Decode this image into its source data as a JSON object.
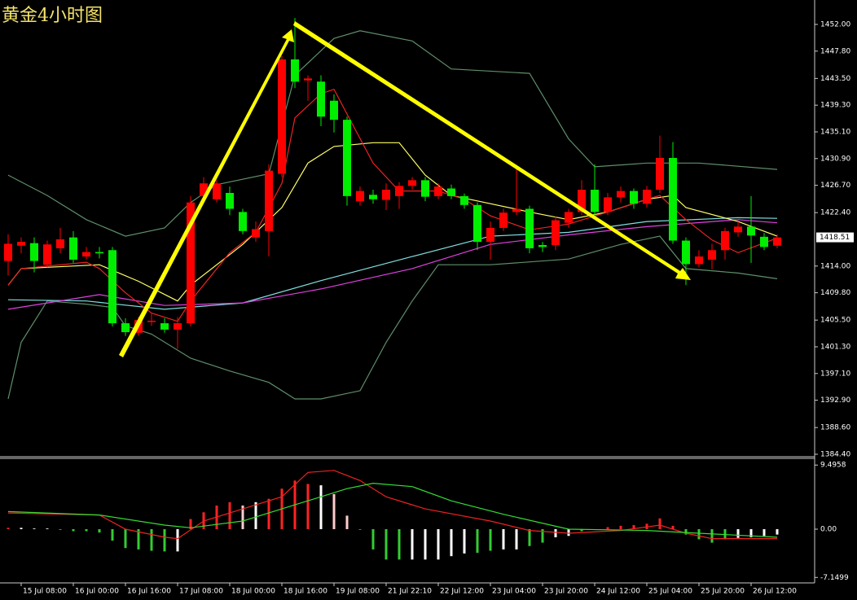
{
  "chart_data": [
    {
      "type": "candlestick",
      "title": "黄金4小时图",
      "up_color": "#ff0000",
      "down_color": "#00ee00",
      "xlim": [
        -0.625,
        61.875
      ],
      "xticks": [
        {
          "value": 1,
          "label": "15 Jul 08:00"
        },
        {
          "value": 5,
          "label": "16 Jul 00:00"
        },
        {
          "value": 9,
          "label": "16 Jul 16:00"
        },
        {
          "value": 13,
          "label": "17 Jul 08:00"
        },
        {
          "value": 17,
          "label": "18 Jul 00:00"
        },
        {
          "value": 21,
          "label": "18 Jul 16:00"
        },
        {
          "value": 25,
          "label": "19 Jul 08:00"
        },
        {
          "value": 29,
          "label": "21 Jul 22:10"
        },
        {
          "value": 33,
          "label": "22 Jul 12:00"
        },
        {
          "value": 37,
          "label": "23 Jul 04:00"
        },
        {
          "value": 41,
          "label": "23 Jul 20:00"
        },
        {
          "value": 45,
          "label": "24 Jul 12:00"
        },
        {
          "value": 49,
          "label": "25 Jul 04:00"
        },
        {
          "value": 53,
          "label": "25 Jul 20:00"
        },
        {
          "value": 57,
          "label": "26 Jul 12:00"
        }
      ],
      "ylim": [
        1384.14,
        1455.84
      ],
      "yticks": [
        {
          "value": 1452,
          "label": "1452.00"
        },
        {
          "value": 1447.8,
          "label": "1447.80"
        },
        {
          "value": 1443.5,
          "label": "1443.50"
        },
        {
          "value": 1439.3,
          "label": "1439.30"
        },
        {
          "value": 1435.1,
          "label": "1435.10"
        },
        {
          "value": 1430.9,
          "label": "1430.90"
        },
        {
          "value": 1426.7,
          "label": "1426.70"
        },
        {
          "value": 1422.4,
          "label": "1422.40"
        },
        {
          "value": 1414,
          "label": "1414.00"
        },
        {
          "value": 1409.8,
          "label": "1409.80"
        },
        {
          "value": 1405.5,
          "label": "1405.50"
        },
        {
          "value": 1401.3,
          "label": "1401.30"
        },
        {
          "value": 1397.1,
          "label": "1397.10"
        },
        {
          "value": 1392.9,
          "label": "1392.90"
        },
        {
          "value": 1388.6,
          "label": "1388.60"
        },
        {
          "value": 1384.4,
          "label": "1384.40"
        }
      ],
      "last_price": 1418.51,
      "open": [
        1414.8,
        1417.2,
        1417.6,
        1414.2,
        1416.8,
        1418.5,
        1415.5,
        1416.2,
        1416.5,
        1405,
        1403.5,
        1405.2,
        1405,
        1404,
        1405,
        1425,
        1424.5,
        1425.5,
        1422.5,
        1418.5,
        1419.5,
        1428.5,
        1446.5,
        1443.2,
        1443,
        1440,
        1437,
        1424.2,
        1425.2,
        1424.4,
        1425,
        1426.6,
        1427.5,
        1425,
        1426.2,
        1425,
        1423.6,
        1417.8,
        1420,
        1422.5,
        1423,
        1417.3,
        1417.3,
        1420.8,
        1422.5,
        1426,
        1422.5,
        1424.8,
        1425.8,
        1423.8,
        1426,
        1431,
        1418,
        1414.3,
        1415,
        1416.5,
        1419.3,
        1420.2,
        1418.6,
        1417.2
      ],
      "high": [
        1419,
        1418.5,
        1418.5,
        1418,
        1420,
        1419.5,
        1417,
        1417,
        1417,
        1405.8,
        1406,
        1406.5,
        1405.8,
        1406,
        1425,
        1428,
        1427.5,
        1426.5,
        1423,
        1421,
        1430,
        1447,
        1453,
        1444,
        1444,
        1441,
        1437.5,
        1426.5,
        1426,
        1427,
        1427.2,
        1428,
        1428,
        1427,
        1426.8,
        1425.4,
        1424,
        1421,
        1423,
        1429.5,
        1423.5,
        1417.8,
        1421.8,
        1423,
        1427.5,
        1430,
        1425.5,
        1426.5,
        1426.2,
        1426.6,
        1434.5,
        1433.5,
        1418.5,
        1416.5,
        1417.5,
        1420,
        1421,
        1425,
        1419.2,
        1419
      ],
      "low": [
        1412.5,
        1416,
        1413,
        1413.8,
        1416,
        1414.5,
        1415,
        1415.2,
        1404.5,
        1403,
        1403,
        1404.6,
        1403.5,
        1401,
        1404.5,
        1424,
        1424,
        1422,
        1419,
        1417.8,
        1415.5,
        1428,
        1442,
        1440,
        1436,
        1435,
        1423.5,
        1423.5,
        1423.8,
        1422.8,
        1423,
        1426,
        1424.2,
        1424.5,
        1424.5,
        1423,
        1416.5,
        1415,
        1419.5,
        1422,
        1416,
        1416.2,
        1416.5,
        1420,
        1422,
        1422,
        1422,
        1424,
        1423,
        1423.2,
        1425.5,
        1417.5,
        1411,
        1413.8,
        1413.5,
        1415,
        1418.6,
        1414.5,
        1416.5,
        1416.8
      ],
      "close": [
        1417.5,
        1417.8,
        1414.8,
        1417.4,
        1418.2,
        1415,
        1416.2,
        1416,
        1405,
        1403.6,
        1405.5,
        1405.4,
        1404,
        1405,
        1424,
        1427,
        1427,
        1423,
        1419.5,
        1419.8,
        1429,
        1446.5,
        1443,
        1443.5,
        1437.5,
        1437,
        1425,
        1425.8,
        1424.5,
        1426,
        1426.6,
        1427.5,
        1424.9,
        1426.5,
        1425,
        1423.6,
        1417.8,
        1420,
        1422.4,
        1423,
        1416.8,
        1417,
        1421.2,
        1422.5,
        1426,
        1422.5,
        1424.8,
        1425.8,
        1423.8,
        1426,
        1431,
        1418,
        1414.3,
        1415.5,
        1416.5,
        1419.5,
        1420.2,
        1418.8,
        1417,
        1418.5
      ],
      "series": [
        {
          "color": "#5f8f6a",
          "x": [
            0,
            3,
            6,
            9,
            12,
            14,
            16,
            20,
            22,
            25,
            27,
            31,
            34,
            40,
            43,
            45,
            49,
            53,
            59
          ],
          "values": [
            1428.3,
            1425.1,
            1421.3,
            1418.7,
            1420,
            1424,
            1426.8,
            1428.5,
            1444,
            1449.8,
            1451,
            1449.4,
            1445,
            1444.3,
            1434,
            1429.6,
            1430.2,
            1430.2,
            1429.2
          ]
        },
        {
          "color": "#5f8f6a",
          "x": [
            0,
            1,
            3,
            6,
            8,
            9,
            11,
            14,
            17,
            20,
            22,
            24,
            27,
            29,
            31,
            33,
            37,
            43,
            47,
            50,
            52,
            56,
            59
          ],
          "values": [
            1393.1,
            1402,
            1408.5,
            1408,
            1407.5,
            1404.6,
            1403.3,
            1399.5,
            1397.5,
            1395.7,
            1393.1,
            1393.1,
            1394.4,
            1402,
            1408.5,
            1414.2,
            1414.2,
            1415.1,
            1417.4,
            1418.7,
            1413.6,
            1412.9,
            1412
          ]
        },
        {
          "color": "#7fe0e0",
          "x": [
            0,
            6,
            12,
            18,
            24,
            31,
            37,
            43,
            49,
            56,
            59
          ],
          "values": [
            1408.7,
            1408.5,
            1407.2,
            1408.2,
            1411.7,
            1415.5,
            1418.7,
            1419.3,
            1421,
            1421.6,
            1421.5
          ]
        },
        {
          "color": "#e040e0",
          "x": [
            0,
            7,
            12,
            18,
            24,
            31,
            37,
            43,
            49,
            56,
            59
          ],
          "values": [
            1407.2,
            1409.5,
            1407.8,
            1408.2,
            1410.4,
            1413.6,
            1417.4,
            1418.9,
            1420.2,
            1421.3,
            1420.8
          ]
        },
        {
          "color": "#ffff66",
          "x": [
            0,
            1,
            7,
            10,
            13,
            14,
            18,
            21,
            23,
            25,
            28,
            30,
            32,
            34,
            37,
            40,
            43,
            46,
            49,
            51,
            52,
            56,
            59
          ],
          "values": [
            1411,
            1413.6,
            1414.2,
            1411.6,
            1408.5,
            1411,
            1417.4,
            1423.2,
            1430.2,
            1432.8,
            1433.4,
            1433.4,
            1428.3,
            1425.1,
            1423.8,
            1422.5,
            1421.3,
            1422.5,
            1424.5,
            1425.1,
            1423.2,
            1421,
            1418.7
          ]
        },
        {
          "color": "#ee2222",
          "x": [
            0,
            1,
            6,
            7,
            9,
            11,
            13,
            14,
            17,
            19,
            21,
            22,
            24,
            25,
            26,
            28,
            30,
            33,
            35,
            37,
            40,
            43,
            46,
            49,
            50,
            52,
            54,
            56,
            59
          ],
          "values": [
            1411,
            1413.6,
            1414.6,
            1413.6,
            1409.8,
            1406.6,
            1405.3,
            1408.5,
            1416.1,
            1419.3,
            1427,
            1437.3,
            1441.1,
            1441.8,
            1437.9,
            1430.2,
            1425.8,
            1425.8,
            1424.5,
            1421.9,
            1419.7,
            1420.6,
            1422.5,
            1424.5,
            1425.1,
            1421.3,
            1418.1,
            1416.1,
            1418.4
          ]
        }
      ]
    },
    {
      "type": "macd",
      "xlim": [
        -0.625,
        61.875
      ],
      "ylim": [
        -7.96,
        10.49
      ],
      "yticks": [
        9.4958,
        {
          "value": 0,
          "label": "0.00"
        },
        -7.1499
      ],
      "values": [
        0.2,
        0.2,
        0.1,
        0.1,
        -0.1,
        -0.3,
        -0.3,
        -0.5,
        -1.7,
        -2.8,
        -3,
        -3.2,
        -3.3,
        -3.3,
        1.5,
        2.5,
        3.5,
        4,
        3.5,
        4,
        4.5,
        6,
        7.2,
        6.7,
        6.5,
        5.2,
        2,
        0,
        -3,
        -4.5,
        -4.5,
        -4.5,
        -4.5,
        -4.5,
        -4,
        -3.6,
        -3.5,
        -3.2,
        -3,
        -3,
        -2.5,
        -2,
        -1.2,
        -1,
        -0.3,
        0,
        0.3,
        0.5,
        0.6,
        0.8,
        1.6,
        0.5,
        -0.8,
        -1.5,
        -2,
        -1.5,
        -1.3,
        -1.2,
        -1,
        -0.8
      ],
      "colors": [
        "#f22",
        "#fff",
        "#fff",
        "#fff",
        "#3c3",
        "#3c3",
        "#3c3",
        "#3c3",
        "#3c3",
        "#3c3",
        "#3c3",
        "#3c3",
        "#3c3",
        "#fff",
        "#f22",
        "#f22",
        "#f22",
        "#f22",
        "#fcc",
        "#fff",
        "#f22",
        "#f22",
        "#f22",
        "#f22",
        "#fff",
        "#fcc",
        "#fcc",
        "#fcc",
        "#3c3",
        "#3c3",
        "#3c3",
        "#fff",
        "#fff",
        "#fff",
        "#fff",
        "#fff",
        "#3c3",
        "#3c3",
        "#fff",
        "#fff",
        "#3c3",
        "#3c3",
        "#fff",
        "#fff",
        "#3c3",
        "#3c3",
        "#f22",
        "#f22",
        "#f22",
        "#f22",
        "#f22",
        "#f22",
        "#3c3",
        "#3c3",
        "#3c3",
        "#3c3",
        "#fff",
        "#fff",
        "#fff",
        "#fff"
      ],
      "series": [
        {
          "color": "#ee2222",
          "x": [
            0,
            7,
            9,
            12,
            13,
            15,
            18,
            21,
            23,
            25,
            27,
            29,
            32,
            37,
            40,
            43,
            47,
            50,
            52,
            54,
            59
          ],
          "values": [
            2.4,
            2.1,
            0,
            -1.2,
            -1.4,
            1.2,
            3,
            4.8,
            8.4,
            8.7,
            7.2,
            4.8,
            3,
            1.2,
            -0.2,
            -0.6,
            -0.2,
            0.6,
            -0.6,
            -1.4,
            -1.4
          ]
        },
        {
          "color": "#33dd33",
          "x": [
            0,
            7,
            12,
            14,
            18,
            22,
            26,
            28,
            31,
            34,
            38,
            43,
            49,
            53,
            59
          ],
          "values": [
            2.6,
            2.1,
            0.6,
            0.2,
            1.2,
            3.6,
            6,
            6.8,
            6.3,
            4.2,
            2.2,
            0,
            -0.2,
            -0.6,
            -1.2
          ]
        }
      ]
    }
  ]
}
